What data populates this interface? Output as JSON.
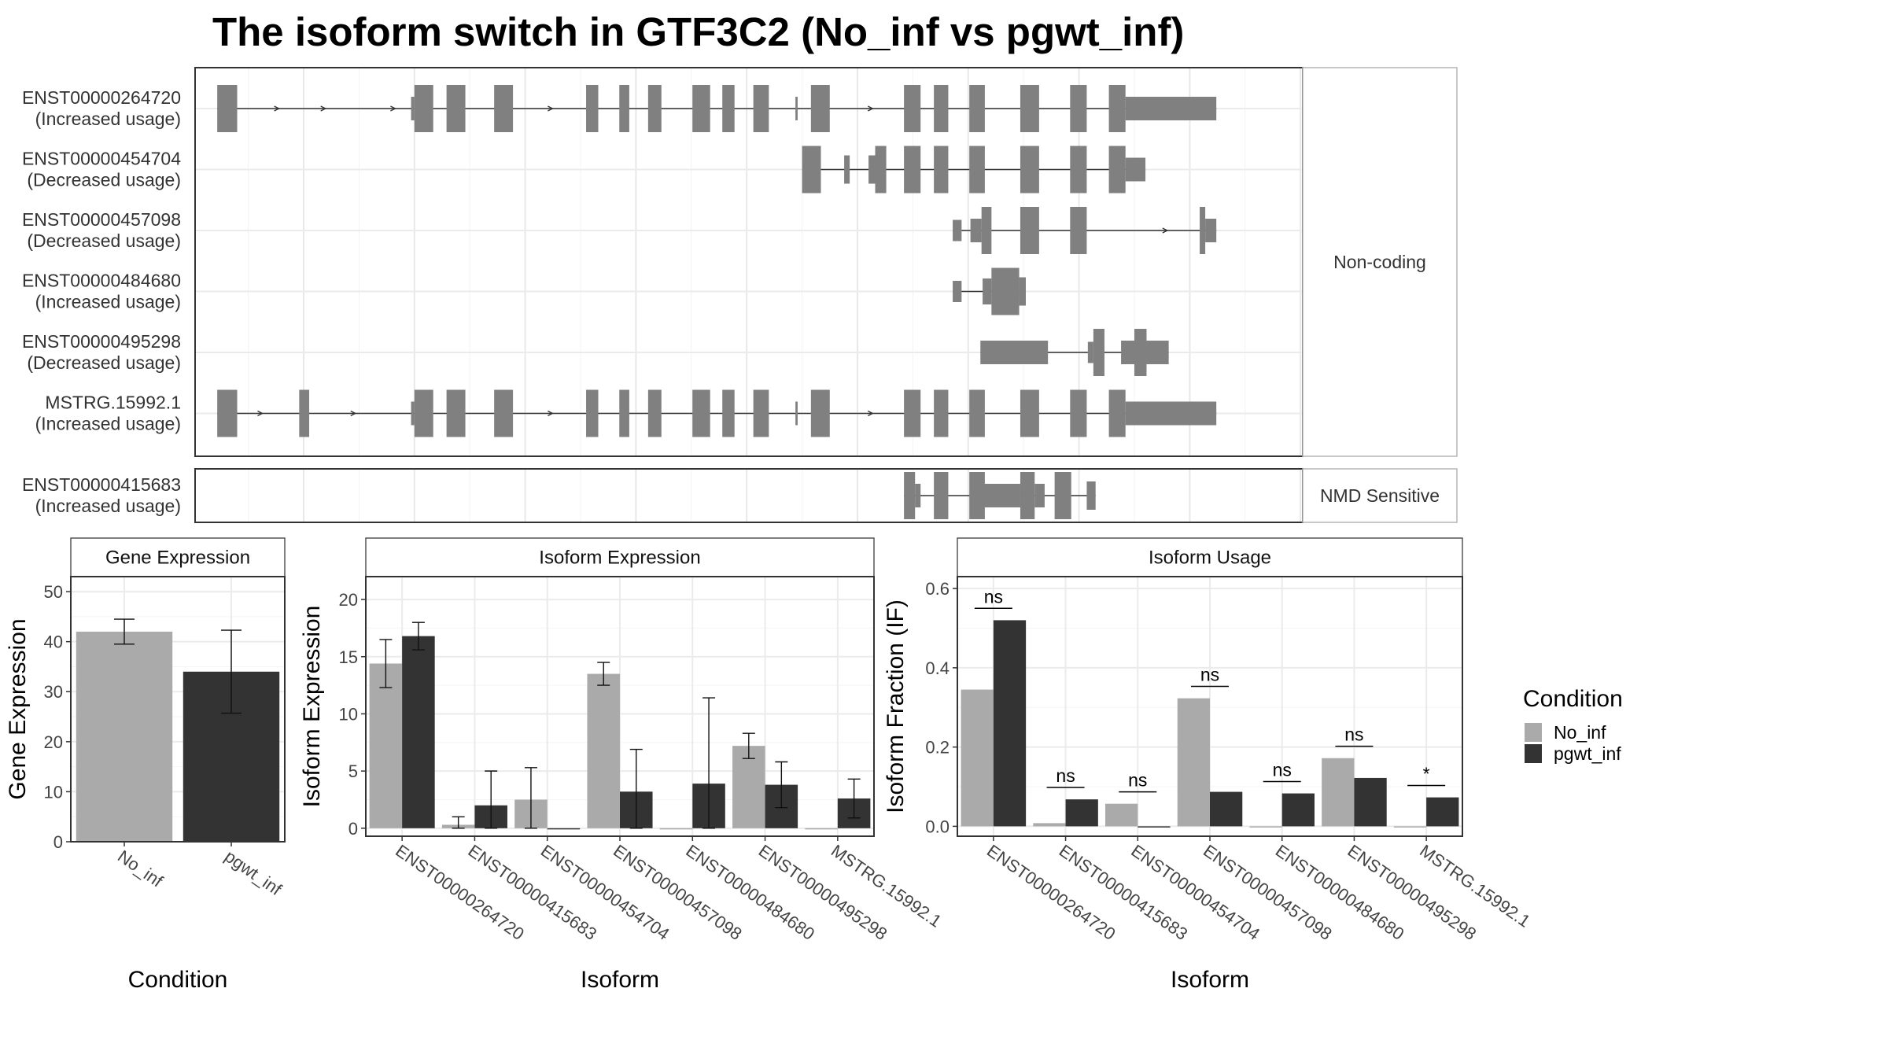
{
  "title": "The isoform switch in GTF3C2 (No_inf vs pgwt_inf)",
  "colors": {
    "No_inf": "#aaaaaa",
    "pgwt_inf": "#333333",
    "exon": "#808080"
  },
  "structure": {
    "x_range": [
      0,
      1000
    ],
    "groups": [
      {
        "label": "Non-coding",
        "tracks": [
          {
            "id": "ENST00000264720",
            "usage": "(Increased usage)",
            "exons": [
              [
                20,
                38,
                1
              ],
              [
                195,
                198,
                0.5
              ],
              [
                198,
                215,
                1
              ],
              [
                227,
                244,
                1
              ],
              [
                270,
                287,
                1
              ],
              [
                353,
                364,
                1
              ],
              [
                383,
                392,
                1
              ],
              [
                409,
                421,
                1
              ],
              [
                449,
                465,
                1
              ],
              [
                476,
                487,
                1
              ],
              [
                504,
                518,
                1
              ],
              [
                542,
                544,
                0.5
              ],
              [
                556,
                573,
                1
              ],
              [
                640,
                655,
                1
              ],
              [
                667,
                680,
                1
              ],
              [
                699,
                713,
                1
              ],
              [
                745,
                762,
                1
              ],
              [
                790,
                805,
                1
              ],
              [
                825,
                840,
                1
              ],
              [
                840,
                922,
                0.5
              ]
            ],
            "arrows": [
              75,
              117,
              180,
              322,
              517,
              611,
              707
            ]
          },
          {
            "id": "ENST00000454704",
            "usage": "(Decreased usage)",
            "exons": [
              [
                548,
                565,
                1
              ],
              [
                586,
                591,
                0.6
              ],
              [
                608,
                614,
                0.6
              ],
              [
                614,
                624,
                1
              ],
              [
                640,
                655,
                1
              ],
              [
                667,
                680,
                1
              ],
              [
                699,
                713,
                1
              ],
              [
                745,
                762,
                1
              ],
              [
                790,
                805,
                1
              ],
              [
                825,
                840,
                1
              ],
              [
                840,
                858,
                0.5
              ]
            ],
            "arrows": [
              707
            ]
          },
          {
            "id": "ENST00000457098",
            "usage": "(Decreased usage)",
            "exons": [
              [
                684,
                692,
                0.45
              ],
              [
                700,
                710,
                0.5
              ],
              [
                710,
                719,
                1
              ],
              [
                745,
                762,
                1
              ],
              [
                790,
                805,
                1
              ],
              [
                907,
                912,
                1
              ],
              [
                912,
                922,
                0.5
              ]
            ],
            "arrows": [
              877
            ]
          },
          {
            "id": "ENST00000484680",
            "usage": "(Increased usage)",
            "exons": [
              [
                684,
                692,
                0.45
              ],
              [
                711,
                719,
                0.55
              ],
              [
                719,
                744,
                1
              ],
              [
                744,
                750,
                0.6
              ]
            ]
          },
          {
            "id": "ENST00000495298",
            "usage": "(Decreased usage)",
            "exons": [
              [
                709,
                770,
                0.5
              ],
              [
                806,
                811,
                0.45
              ],
              [
                811,
                821,
                1
              ],
              [
                836,
                848,
                0.5
              ],
              [
                848,
                859,
                1
              ],
              [
                859,
                879,
                0.5
              ]
            ]
          },
          {
            "id": "MSTRG.15992.1",
            "usage": "(Increased usage)",
            "exons": [
              [
                20,
                38,
                1
              ],
              [
                94,
                103,
                1
              ],
              [
                195,
                198,
                0.5
              ],
              [
                198,
                215,
                1
              ],
              [
                227,
                244,
                1
              ],
              [
                270,
                287,
                1
              ],
              [
                353,
                364,
                1
              ],
              [
                383,
                392,
                1
              ],
              [
                409,
                421,
                1
              ],
              [
                449,
                465,
                1
              ],
              [
                476,
                487,
                1
              ],
              [
                504,
                518,
                1
              ],
              [
                542,
                544,
                0.5
              ],
              [
                556,
                573,
                1
              ],
              [
                640,
                655,
                1
              ],
              [
                667,
                680,
                1
              ],
              [
                699,
                713,
                1
              ],
              [
                745,
                762,
                1
              ],
              [
                790,
                805,
                1
              ],
              [
                825,
                840,
                1
              ],
              [
                840,
                922,
                0.5
              ]
            ],
            "arrows": [
              60,
              144,
              210,
              322,
              517,
              611,
              707
            ]
          }
        ]
      },
      {
        "label": "NMD Sensitive",
        "tracks": [
          {
            "id": "ENST00000415683",
            "usage": "(Increased usage)",
            "exons": [
              [
                640,
                650,
                1
              ],
              [
                650,
                655,
                0.5
              ],
              [
                667,
                680,
                1
              ],
              [
                699,
                713,
                1
              ],
              [
                709,
                745,
                0.5
              ],
              [
                745,
                758,
                1
              ],
              [
                758,
                767,
                0.5
              ],
              [
                776,
                791,
                1
              ],
              [
                805,
                813,
                0.6
              ]
            ]
          }
        ]
      }
    ]
  },
  "chart_data": [
    {
      "type": "bar",
      "title": "Gene Expression",
      "xlabel": "Condition",
      "ylabel": "Gene Expression",
      "categories": [
        "No_inf",
        "pgwt_inf"
      ],
      "values": [
        42,
        34
      ],
      "errors": [
        [
          39.5,
          44.5
        ],
        [
          25.7,
          42.3
        ]
      ],
      "ylim": [
        0,
        53
      ],
      "yticks": [
        0,
        10,
        20,
        30,
        40,
        50
      ],
      "grid": true
    },
    {
      "type": "bar",
      "title": "Isoform Expression",
      "xlabel": "Isoform",
      "ylabel": "Isoform Expression",
      "categories": [
        "ENST00000264720",
        "ENST00000415683",
        "ENST00000454704",
        "ENST00000457098",
        "ENST00000484680",
        "ENST00000495298",
        "MSTRG.15992.1"
      ],
      "series": [
        {
          "name": "No_inf",
          "values": [
            14.4,
            0.3,
            2.5,
            13.5,
            0,
            7.2,
            0
          ],
          "errors": [
            [
              12.3,
              16.5
            ],
            [
              0,
              1.0
            ],
            [
              0,
              5.3
            ],
            [
              12.5,
              14.5
            ],
            null,
            [
              6.1,
              8.3
            ],
            null
          ]
        },
        {
          "name": "pgwt_inf",
          "values": [
            16.8,
            2.0,
            0,
            3.2,
            3.9,
            3.8,
            2.6
          ],
          "errors": [
            [
              15.6,
              18.0
            ],
            [
              0,
              5.0
            ],
            null,
            [
              0,
              6.9
            ],
            [
              0,
              11.4
            ],
            [
              1.8,
              5.8
            ],
            [
              0.9,
              4.3
            ]
          ]
        }
      ],
      "ylim": [
        -0.7,
        22
      ],
      "yticks": [
        0,
        5,
        10,
        15,
        20
      ],
      "grid": true
    },
    {
      "type": "bar",
      "title": "Isoform Usage",
      "xlabel": "Isoform",
      "ylabel": "Isoform Fraction (IF)",
      "categories": [
        "ENST00000264720",
        "ENST00000415683",
        "ENST00000454704",
        "ENST00000457098",
        "ENST00000484680",
        "ENST00000495298",
        "MSTRG.15992.1"
      ],
      "series": [
        {
          "name": "No_inf",
          "values": [
            0.345,
            0.008,
            0.057,
            0.323,
            0,
            0.172,
            0
          ]
        },
        {
          "name": "pgwt_inf",
          "values": [
            0.52,
            0.068,
            0,
            0.087,
            0.083,
            0.122,
            0.073
          ]
        }
      ],
      "significance": [
        "ns",
        "ns",
        "ns",
        "ns",
        "ns",
        "ns",
        "*"
      ],
      "sig_y": [
        0.55,
        0.098,
        0.087,
        0.353,
        0.113,
        0.202,
        0.103
      ],
      "ylim": [
        -0.025,
        0.63
      ],
      "yticks": [
        0.0,
        0.2,
        0.4,
        0.6
      ],
      "yticklabels": [
        "0.0",
        "0.2",
        "0.4",
        "0.6"
      ],
      "grid": true
    }
  ],
  "legend": {
    "title": "Condition",
    "items": [
      {
        "label": "No_inf",
        "color": "#aaaaaa"
      },
      {
        "label": "pgwt_inf",
        "color": "#333333"
      }
    ]
  }
}
